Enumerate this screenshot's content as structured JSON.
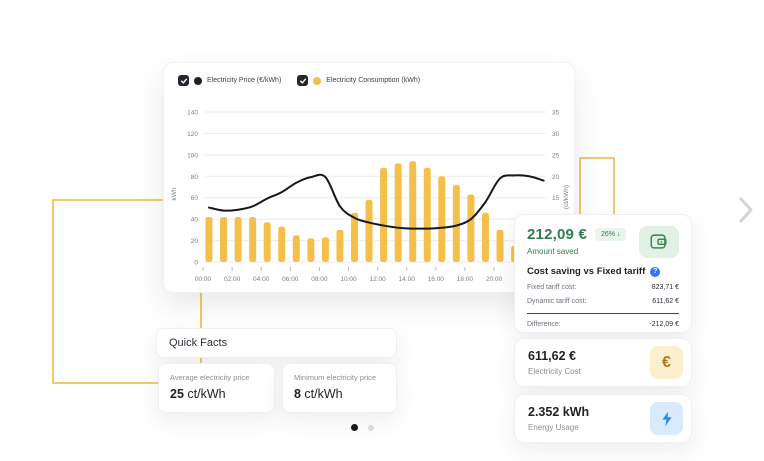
{
  "chart_panel": {
    "legend": [
      {
        "label": "Electricity Price (€/kWh)",
        "dot_color": "#1E2126",
        "checked": true
      },
      {
        "label": "Electricity Consumption (kWh)",
        "dot_color": "#F5C04A",
        "checked": true
      }
    ]
  },
  "chart_data": {
    "type": "bar+line",
    "x": [
      "00:00",
      "01:00",
      "02:00",
      "03:00",
      "04:00",
      "05:00",
      "06:00",
      "07:00",
      "08:00",
      "09:00",
      "10:00",
      "11:00",
      "12:00",
      "13:00",
      "14:00",
      "15:00",
      "16:00",
      "17:00",
      "18:00",
      "19:00",
      "20:00",
      "21:00",
      "22:00",
      "23:00"
    ],
    "x_tick_every": 2,
    "series": [
      {
        "name": "Electricity Consumption (kWh)",
        "type": "bar",
        "axis": "left",
        "color": "#F5C04A",
        "values": [
          42,
          42,
          42,
          42,
          37,
          33,
          25,
          22,
          23,
          30,
          46,
          58,
          88,
          92,
          94,
          88,
          80,
          72,
          63,
          46,
          30,
          15,
          12,
          10
        ]
      },
      {
        "name": "Electricity Price (€/kWh)",
        "type": "line",
        "axis": "right",
        "color": "#17181A",
        "values": [
          12.7,
          12,
          12.2,
          13,
          14.8,
          16.3,
          18.5,
          19.8,
          19.8,
          13,
          10.3,
          9.2,
          8.5,
          8,
          7.8,
          7.8,
          8,
          8.5,
          10,
          14,
          19.5,
          20.2,
          20,
          19
        ]
      }
    ],
    "left_axis": {
      "label": "kWh",
      "min": 0,
      "max": 140,
      "step": 20
    },
    "right_axis": {
      "label": "(ct/kWh)",
      "ticks": [
        15,
        20,
        25,
        30,
        35
      ],
      "scale_to_left": 4
    },
    "grid": true,
    "legend_position": "top-left"
  },
  "savings_card": {
    "amount": "212,09 €",
    "badge": "26%  ↓",
    "subtitle": "Amount saved",
    "title": "Cost saving vs Fixed tariff",
    "info_glyph": "?",
    "rows": [
      {
        "label": "Fixed tariff cost:",
        "value": "823,71 €"
      },
      {
        "label": "Dynamic tariff cost:",
        "value": "611,62 €"
      }
    ],
    "difference": {
      "label": "Difference:",
      "value": "-212,09 €"
    }
  },
  "cost_card": {
    "value": "611,62 €",
    "label": "Electricity Cost",
    "icon_glyph": "€"
  },
  "usage_card": {
    "value": "2.352 kWh",
    "label": "Energy Usage"
  },
  "quick_facts": {
    "title": "Quick Facts",
    "facts": [
      {
        "label": "Average electricity price",
        "value_bold": "25",
        "value_unit": " ct/kWh"
      },
      {
        "label": "Minimum electricity price",
        "value_bold": "8",
        "value_unit": " ct/kWh"
      }
    ]
  },
  "colors": {
    "accent_yellow": "#F5C04A",
    "decor_yellow": "#F4C967",
    "green": "#2E7D4F",
    "blue": "#2D8CEA",
    "line_black": "#17181A"
  }
}
